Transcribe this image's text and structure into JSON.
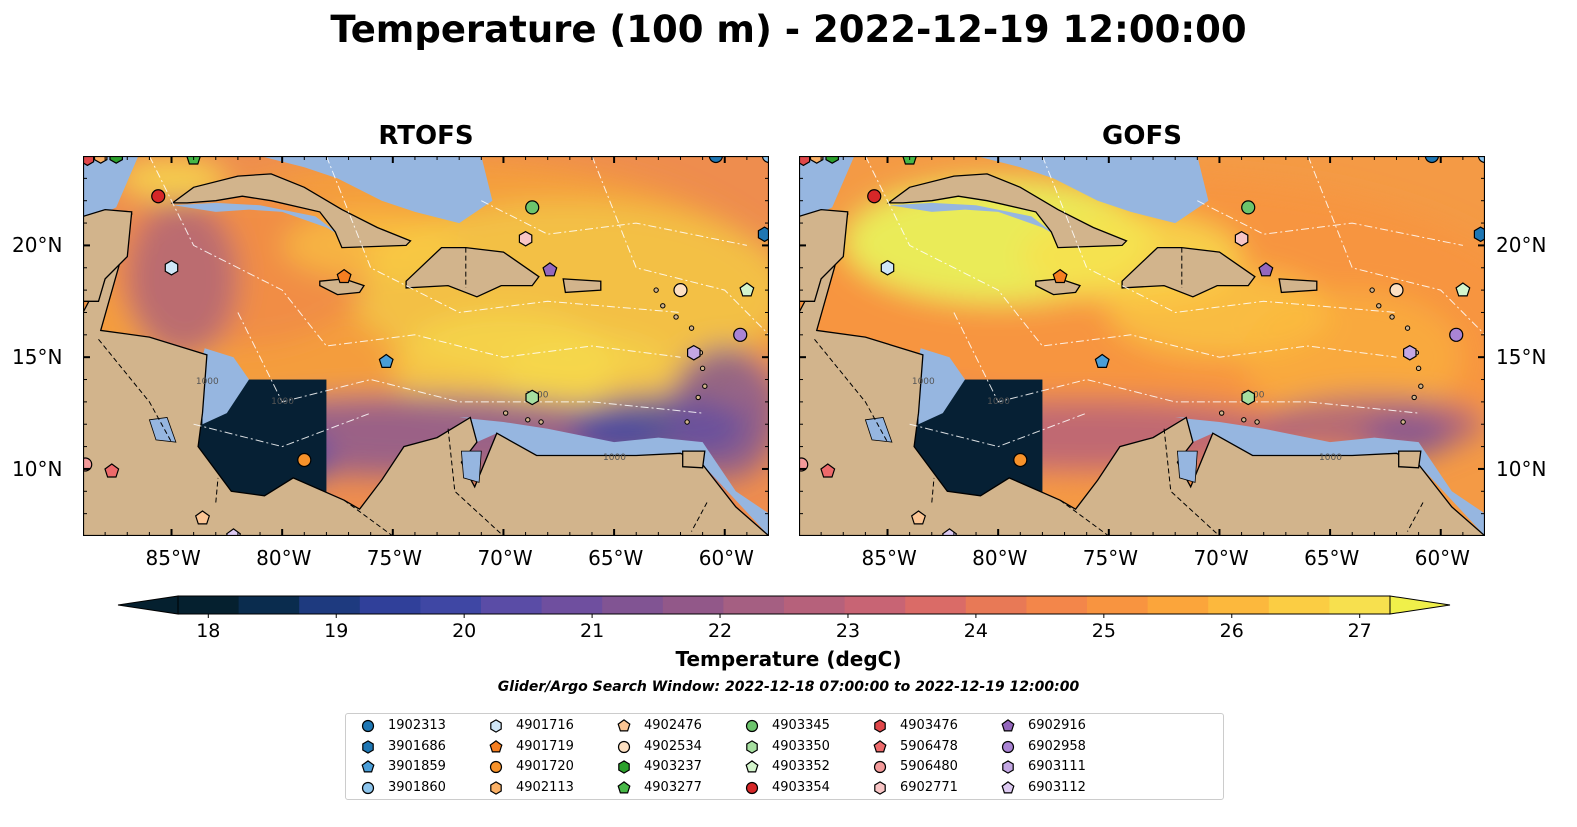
{
  "title": "Temperature (100 m) - 2022-12-19 12:00:00",
  "panels": [
    {
      "title": "RTOFS",
      "style": "rtofs"
    },
    {
      "title": "GOFS",
      "style": "gofs"
    }
  ],
  "map": {
    "lon_range": [
      -89,
      -58
    ],
    "lat_range": [
      7,
      24
    ],
    "lon_ticks": [
      {
        "value": -85,
        "label": "85°W"
      },
      {
        "value": -80,
        "label": "80°W"
      },
      {
        "value": -75,
        "label": "75°W"
      },
      {
        "value": -70,
        "label": "70°W"
      },
      {
        "value": -65,
        "label": "65°W"
      },
      {
        "value": -60,
        "label": "60°W"
      }
    ],
    "lat_ticks": [
      {
        "value": 20,
        "label": "20°N"
      },
      {
        "value": 15,
        "label": "15°N"
      },
      {
        "value": 10,
        "label": "10°N"
      }
    ],
    "contour_label": "1000",
    "colors": {
      "land": "#d2b48c",
      "shallow_water": "#96b6e0",
      "deep_pacific": "#062034"
    }
  },
  "colorbar": {
    "label": "Temperature (degC)",
    "min": 18,
    "max": 27,
    "step": 0.5,
    "ticks": [
      "18",
      "19",
      "20",
      "21",
      "22",
      "23",
      "24",
      "25",
      "26",
      "27"
    ],
    "extend": "both",
    "colors": [
      "#05202f",
      "#0a2c4e",
      "#1e3a7f",
      "#30409a",
      "#3f47a4",
      "#5a4ca6",
      "#6f4f9f",
      "#815493",
      "#925889",
      "#a55f82",
      "#b6617b",
      "#c86474",
      "#da6b67",
      "#e87956",
      "#f3864a",
      "#f89440",
      "#fba53b",
      "#fcb83d",
      "#fbcd43",
      "#f7e04e"
    ]
  },
  "search_window": "Glider/Argo Search Window: 2022-12-18 07:00:00 to 2022-12-19 12:00:00",
  "legend": [
    {
      "id": "1902313",
      "color": "#1f77b4",
      "shape": "circle",
      "lon": -60.4,
      "lat": 24.0
    },
    {
      "id": "3901686",
      "color": "#1f77b4",
      "shape": "hexagon",
      "lon": -58.2,
      "lat": 20.5
    },
    {
      "id": "3901859",
      "color": "#4a9ed8",
      "shape": "pentagon",
      "lon": -75.3,
      "lat": 14.8
    },
    {
      "id": "3901860",
      "color": "#8cc4ec",
      "shape": "circle",
      "lon": -58.0,
      "lat": 24.0
    },
    {
      "id": "4901716",
      "color": "#cfe6f7",
      "shape": "hexagon",
      "lon": -85.0,
      "lat": 19.0
    },
    {
      "id": "4901719",
      "color": "#f57e20",
      "shape": "pentagon",
      "lon": -77.2,
      "lat": 18.6
    },
    {
      "id": "4901720",
      "color": "#f7922a",
      "shape": "circle",
      "lon": -79.0,
      "lat": 10.4
    },
    {
      "id": "4902113",
      "color": "#fbb166",
      "shape": "hexagon",
      "lon": -88.2,
      "lat": 24.0
    },
    {
      "id": "4902476",
      "color": "#fbc594",
      "shape": "pentagon",
      "lon": -83.6,
      "lat": 7.8
    },
    {
      "id": "4902534",
      "color": "#fde0c2",
      "shape": "circle",
      "lon": -62.0,
      "lat": 18.0
    },
    {
      "id": "4903237",
      "color": "#2ca02c",
      "shape": "hexagon",
      "lon": -87.5,
      "lat": 24.0
    },
    {
      "id": "4903277",
      "color": "#47b847",
      "shape": "pentagon",
      "lon": -84.0,
      "lat": 23.9
    },
    {
      "id": "4903345",
      "color": "#6cc46c",
      "shape": "circle",
      "lon": -68.7,
      "lat": 21.7
    },
    {
      "id": "4903350",
      "color": "#a6dfa0",
      "shape": "hexagon",
      "lon": -68.7,
      "lat": 13.2
    },
    {
      "id": "4903352",
      "color": "#d4f5cc",
      "shape": "pentagon",
      "lon": -59.0,
      "lat": 18.0
    },
    {
      "id": "4903354",
      "color": "#d62728",
      "shape": "circle",
      "lon": -85.6,
      "lat": 22.2
    },
    {
      "id": "4903476",
      "color": "#e0474a",
      "shape": "hexagon",
      "lon": -88.8,
      "lat": 23.9
    },
    {
      "id": "5906478",
      "color": "#ed6a6b",
      "shape": "pentagon",
      "lon": -87.7,
      "lat": 9.9
    },
    {
      "id": "5906480",
      "color": "#f39a9a",
      "shape": "circle",
      "lon": -88.9,
      "lat": 10.2
    },
    {
      "id": "6902771",
      "color": "#f8c5c5",
      "shape": "hexagon",
      "lon": -69.0,
      "lat": 20.3
    },
    {
      "id": "6902916",
      "color": "#9467bd",
      "shape": "pentagon",
      "lon": -67.9,
      "lat": 18.9
    },
    {
      "id": "6902958",
      "color": "#aa84d4",
      "shape": "circle",
      "lon": -59.3,
      "lat": 16.0
    },
    {
      "id": "6903111",
      "color": "#c3a7e3",
      "shape": "hexagon",
      "lon": -61.4,
      "lat": 15.2
    },
    {
      "id": "6903112",
      "color": "#ddcaf2",
      "shape": "pentagon",
      "lon": -82.2,
      "lat": 7.0
    }
  ]
}
